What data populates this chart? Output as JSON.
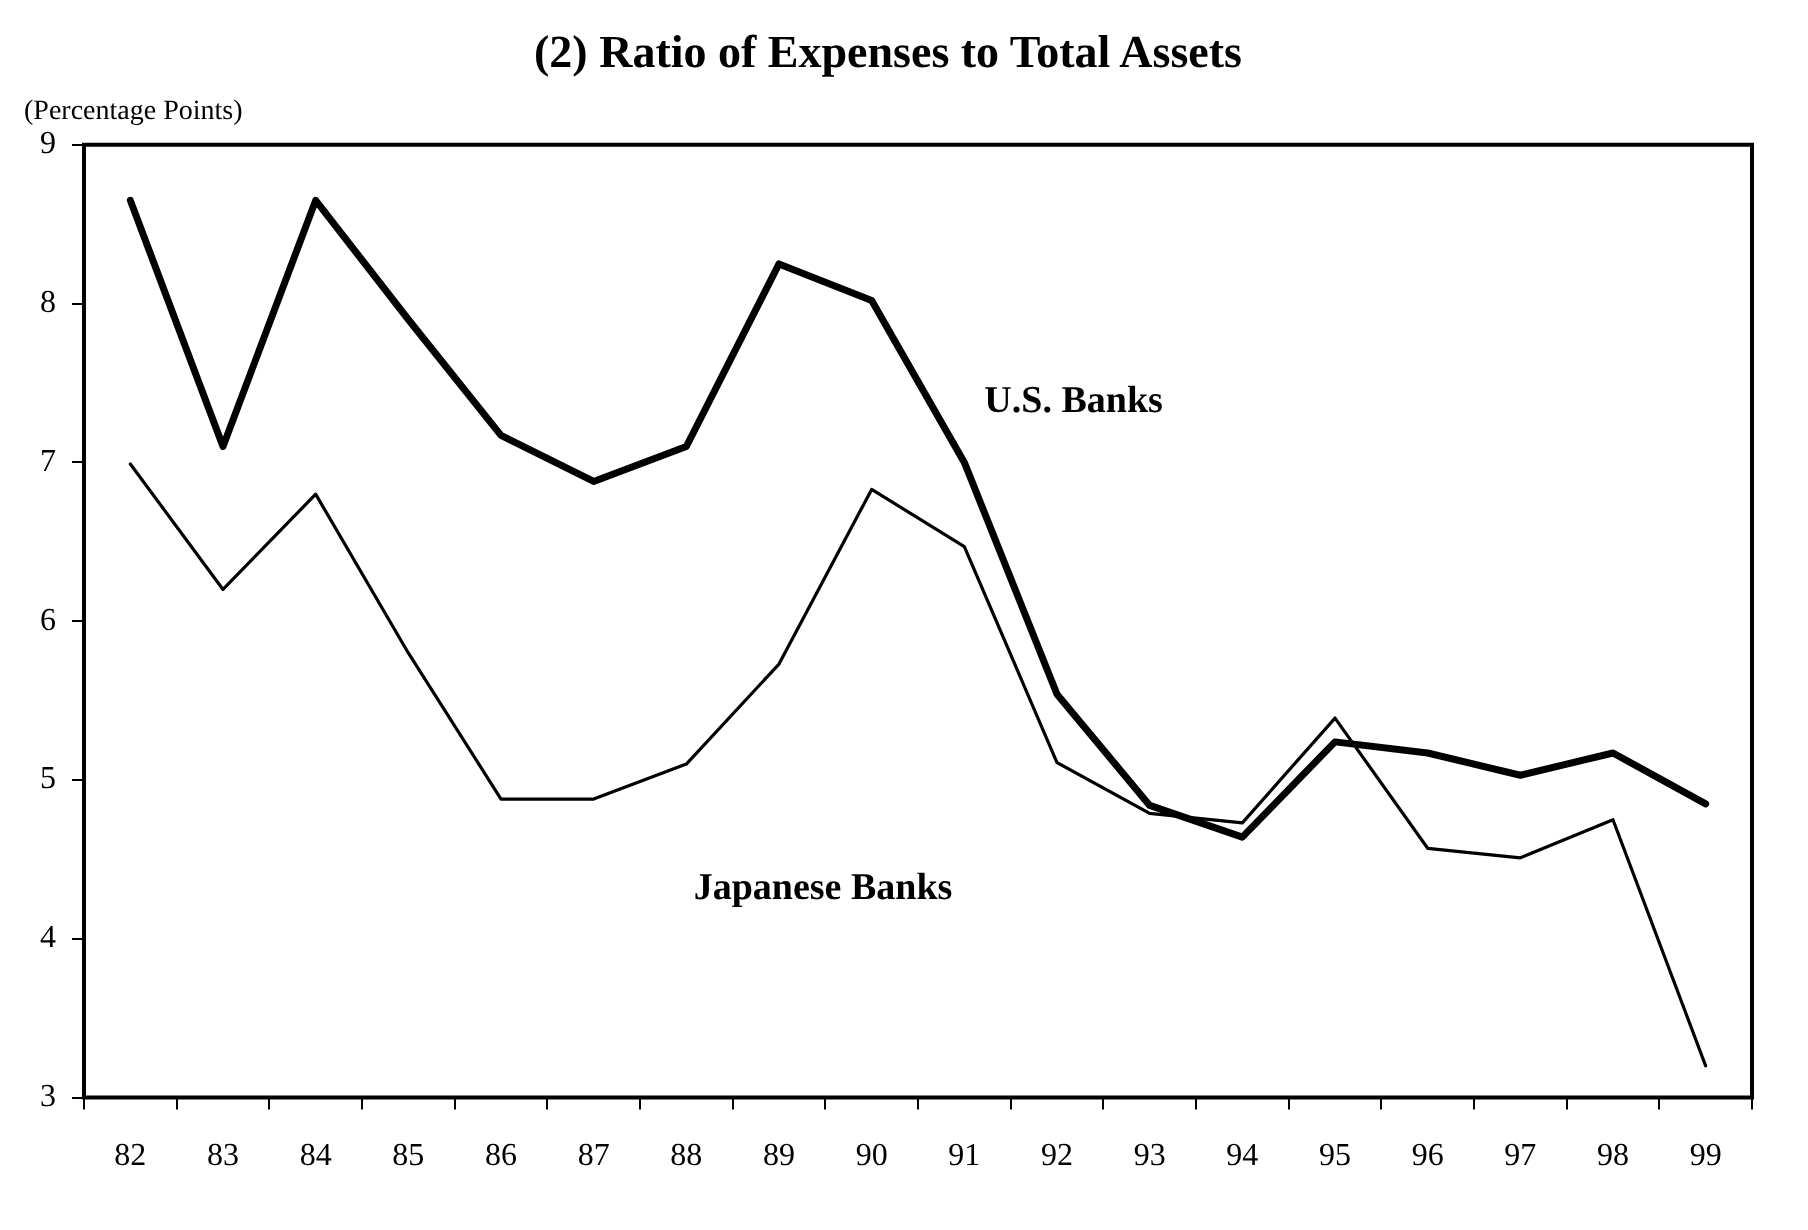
{
  "chart_data": {
    "type": "line",
    "title": "(2) Ratio of Expenses to Total Assets",
    "ylabel": "(Percentage Points)",
    "categories": [
      "82",
      "83",
      "84",
      "85",
      "86",
      "87",
      "88",
      "89",
      "90",
      "91",
      "92",
      "93",
      "94",
      "95",
      "96",
      "97",
      "98",
      "99"
    ],
    "series": [
      {
        "name": "U.S. Banks",
        "color": "#000000",
        "values": [
          8.65,
          7.1,
          8.65,
          7.9,
          7.17,
          6.88,
          7.1,
          8.25,
          8.02,
          7.0,
          5.54,
          4.84,
          4.64,
          5.24,
          5.17,
          5.03,
          5.17,
          4.85
        ]
      },
      {
        "name": "Japanese Banks",
        "color": "#000000",
        "values": [
          6.99,
          6.2,
          6.8,
          5.8,
          4.88,
          4.88,
          5.1,
          5.73,
          6.83,
          6.47,
          5.11,
          4.79,
          4.73,
          5.39,
          4.57,
          4.51,
          4.75,
          3.2
        ]
      }
    ],
    "ylim": [
      3,
      9
    ],
    "yticks": [
      3,
      4,
      5,
      6,
      7,
      8,
      9
    ],
    "grid": false,
    "legend": false,
    "marker": "none",
    "line_style": "solid"
  }
}
